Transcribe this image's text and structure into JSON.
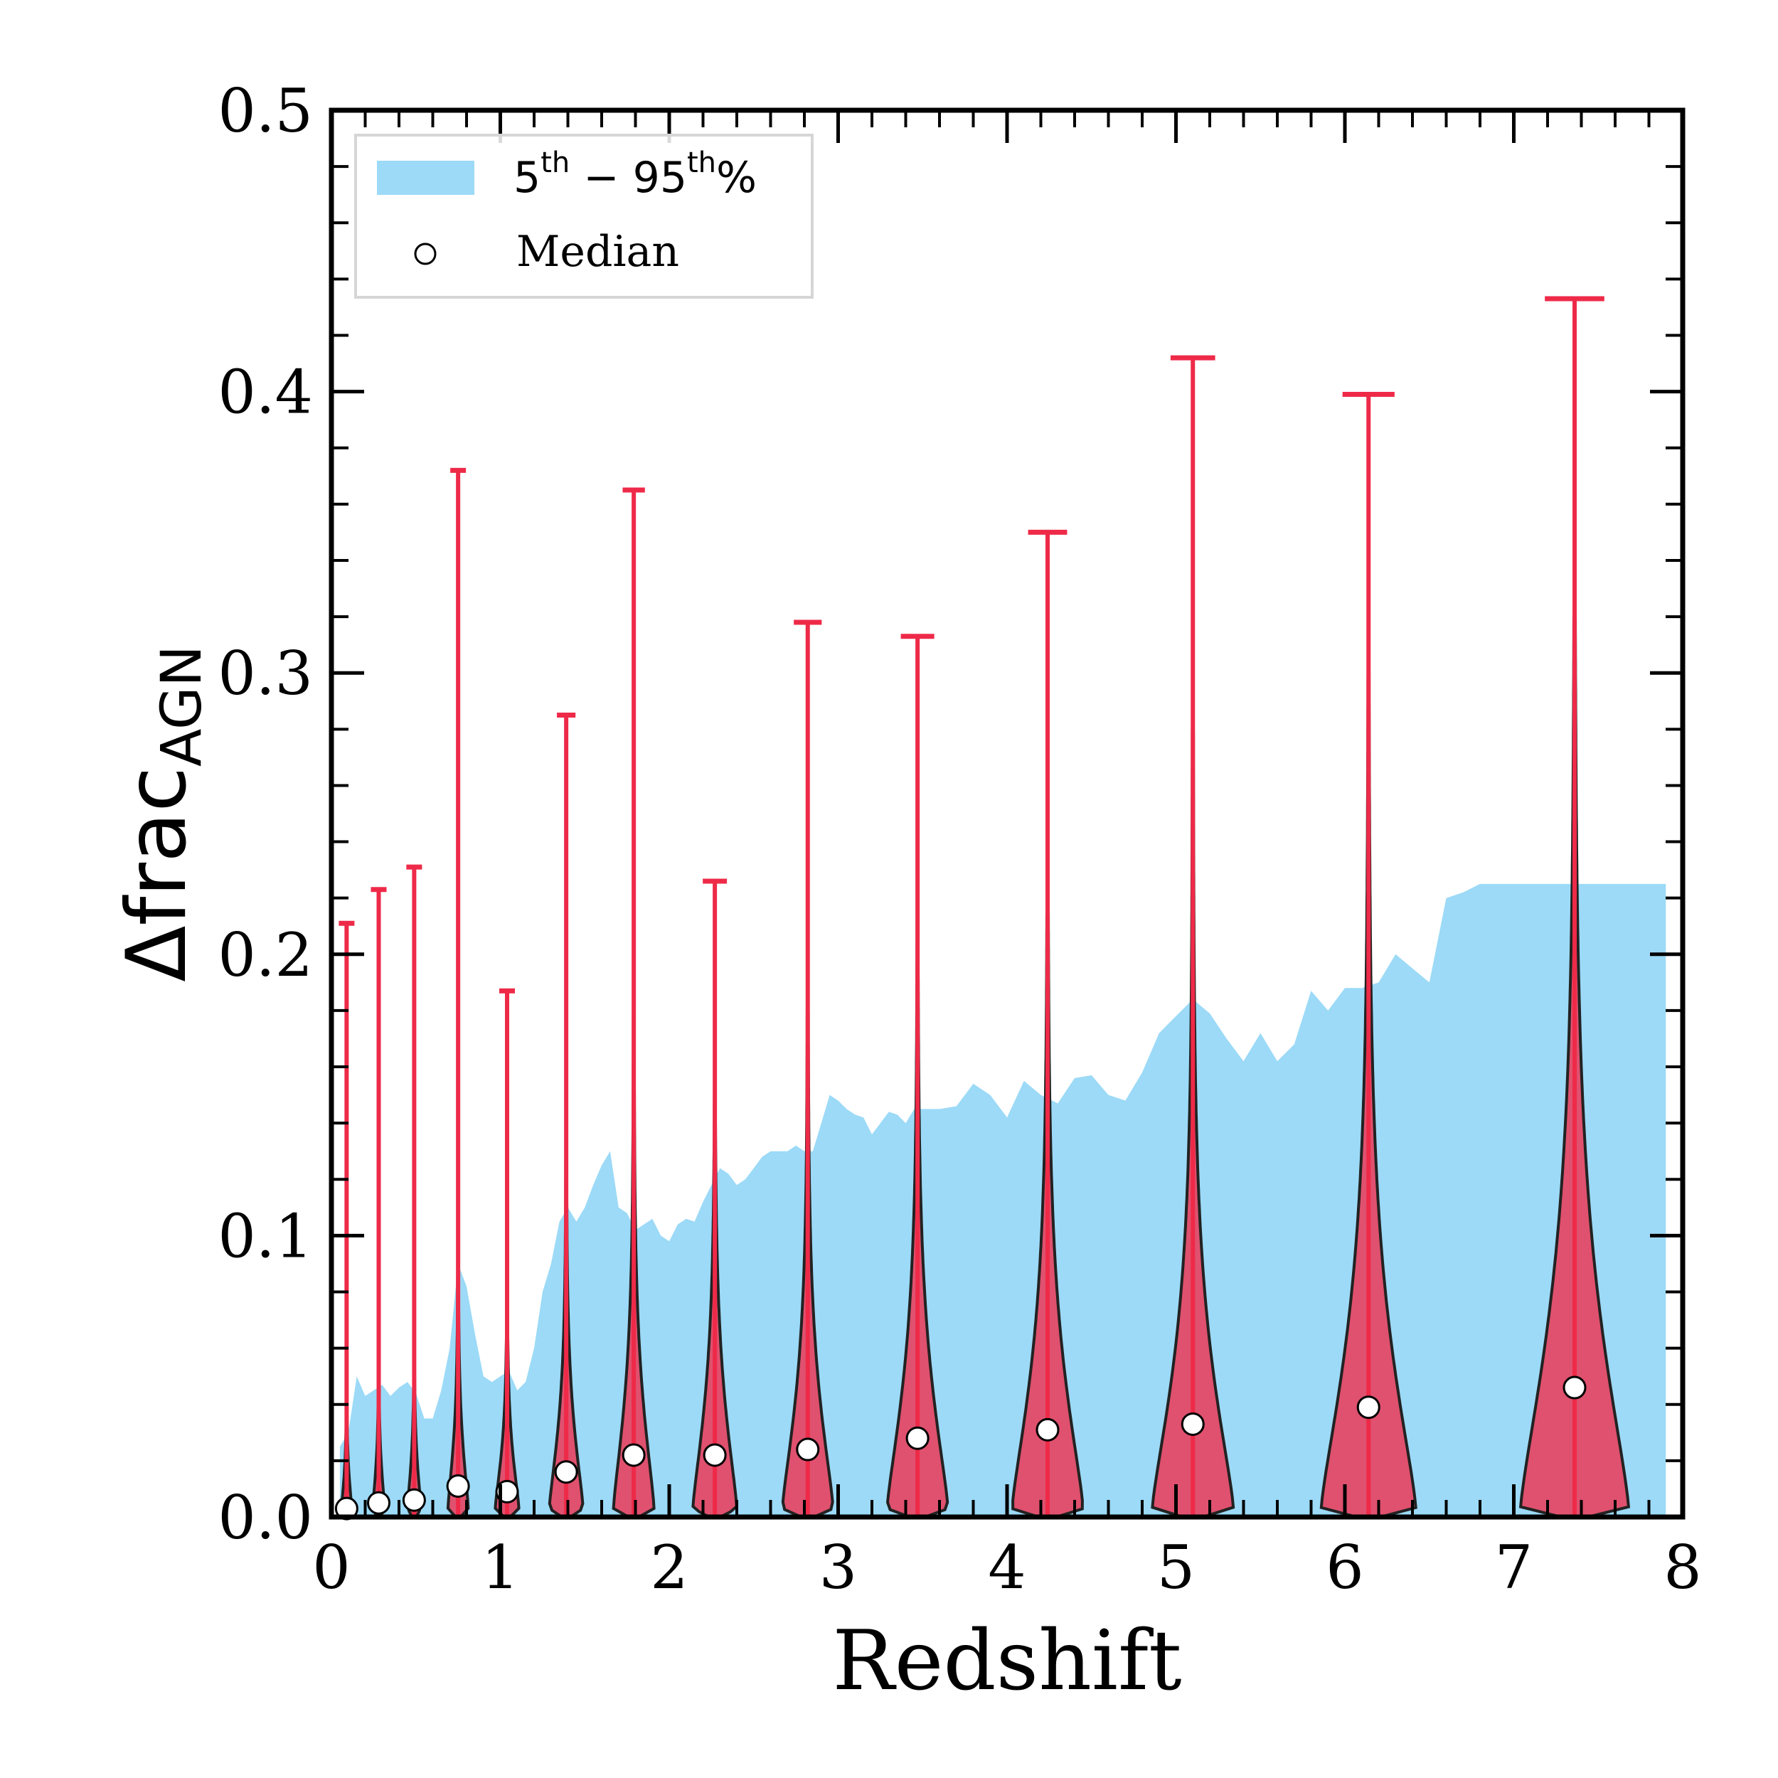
{
  "chart_data": {
    "type": "violin",
    "xlabel": "Redshift",
    "ylabel_main": "Δfrac",
    "ylabel_sub": "AGN",
    "xlim": [
      0,
      8
    ],
    "ylim": [
      0,
      0.5
    ],
    "x_ticks": [
      "0",
      "1",
      "2",
      "3",
      "4",
      "5",
      "6",
      "7",
      "8"
    ],
    "y_ticks": [
      "0.0",
      "0.1",
      "0.2",
      "0.3",
      "0.4",
      "0.5"
    ],
    "legend": {
      "band_label_base1": "5",
      "band_label_sup1": "th",
      "band_label_mid": " − 95",
      "band_label_sup2": "th",
      "band_label_end": "%",
      "median_label": "Median"
    },
    "band_5_95": {
      "x": [
        0.05,
        0.1,
        0.15,
        0.2,
        0.25,
        0.3,
        0.35,
        0.4,
        0.45,
        0.5,
        0.55,
        0.6,
        0.65,
        0.7,
        0.75,
        0.8,
        0.85,
        0.9,
        0.95,
        1.0,
        1.05,
        1.1,
        1.15,
        1.2,
        1.25,
        1.3,
        1.35,
        1.4,
        1.45,
        1.5,
        1.55,
        1.6,
        1.65,
        1.7,
        1.75,
        1.8,
        1.85,
        1.9,
        1.95,
        2.0,
        2.05,
        2.1,
        2.15,
        2.2,
        2.25,
        2.3,
        2.35,
        2.4,
        2.45,
        2.5,
        2.55,
        2.6,
        2.65,
        2.7,
        2.75,
        2.8,
        2.85,
        2.9,
        2.95,
        3.0,
        3.05,
        3.1,
        3.15,
        3.2,
        3.25,
        3.3,
        3.35,
        3.4,
        3.45,
        3.5,
        3.6,
        3.7,
        3.8,
        3.9,
        4.0,
        4.1,
        4.2,
        4.3,
        4.4,
        4.5,
        4.6,
        4.7,
        4.8,
        4.9,
        5.0,
        5.1,
        5.2,
        5.3,
        5.4,
        5.5,
        5.6,
        5.7,
        5.8,
        5.9,
        6.0,
        6.1,
        6.2,
        6.3,
        6.4,
        6.5,
        6.6,
        6.7,
        6.8,
        6.9,
        7.0,
        7.1,
        7.2,
        7.3,
        7.4,
        7.5,
        7.6,
        7.7,
        7.8,
        7.9
      ],
      "upper": [
        0.025,
        0.03,
        0.05,
        0.043,
        0.045,
        0.047,
        0.043,
        0.046,
        0.048,
        0.044,
        0.035,
        0.035,
        0.045,
        0.06,
        0.09,
        0.082,
        0.065,
        0.05,
        0.048,
        0.05,
        0.052,
        0.045,
        0.048,
        0.06,
        0.08,
        0.09,
        0.105,
        0.11,
        0.105,
        0.11,
        0.118,
        0.125,
        0.13,
        0.11,
        0.108,
        0.102,
        0.104,
        0.106,
        0.1,
        0.098,
        0.104,
        0.106,
        0.105,
        0.112,
        0.118,
        0.124,
        0.122,
        0.118,
        0.12,
        0.124,
        0.128,
        0.13,
        0.13,
        0.13,
        0.132,
        0.13,
        0.13,
        0.14,
        0.15,
        0.148,
        0.145,
        0.143,
        0.142,
        0.136,
        0.14,
        0.144,
        0.143,
        0.14,
        0.145,
        0.145,
        0.145,
        0.146,
        0.154,
        0.15,
        0.142,
        0.155,
        0.15,
        0.147,
        0.156,
        0.157,
        0.15,
        0.148,
        0.158,
        0.172,
        0.178,
        0.184,
        0.179,
        0.17,
        0.162,
        0.172,
        0.162,
        0.168,
        0.187,
        0.18,
        0.188,
        0.188,
        0.19,
        0.2,
        0.195,
        0.19,
        0.22,
        0.222,
        0.225,
        0.225,
        0.225,
        0.225,
        0.225,
        0.225,
        0.225,
        0.225,
        0.225,
        0.225,
        0.225,
        0.225
      ],
      "lower": 0.0
    },
    "violins": [
      {
        "x": 0.09,
        "median": 0.003,
        "max": 0.211,
        "width": 0.06
      },
      {
        "x": 0.28,
        "median": 0.005,
        "max": 0.223,
        "width": 0.07
      },
      {
        "x": 0.49,
        "median": 0.006,
        "max": 0.231,
        "width": 0.08
      },
      {
        "x": 0.75,
        "median": 0.011,
        "max": 0.372,
        "width": 0.12
      },
      {
        "x": 1.04,
        "median": 0.009,
        "max": 0.187,
        "width": 0.14
      },
      {
        "x": 1.39,
        "median": 0.016,
        "max": 0.285,
        "width": 0.2
      },
      {
        "x": 1.79,
        "median": 0.022,
        "max": 0.365,
        "width": 0.24
      },
      {
        "x": 2.27,
        "median": 0.022,
        "max": 0.226,
        "width": 0.26
      },
      {
        "x": 2.82,
        "median": 0.024,
        "max": 0.318,
        "width": 0.3
      },
      {
        "x": 3.47,
        "median": 0.028,
        "max": 0.313,
        "width": 0.36
      },
      {
        "x": 4.24,
        "median": 0.031,
        "max": 0.35,
        "width": 0.42
      },
      {
        "x": 5.1,
        "median": 0.033,
        "max": 0.412,
        "width": 0.48
      },
      {
        "x": 6.14,
        "median": 0.039,
        "max": 0.399,
        "width": 0.56
      },
      {
        "x": 7.36,
        "median": 0.046,
        "max": 0.433,
        "width": 0.64
      }
    ],
    "colors": {
      "band": "#9cdaf7",
      "violin_fill": "#e34a66",
      "violin_edge": "#222222",
      "whisker": "#ee2a48",
      "median_fill": "#ffffff",
      "median_edge": "#000000"
    }
  }
}
